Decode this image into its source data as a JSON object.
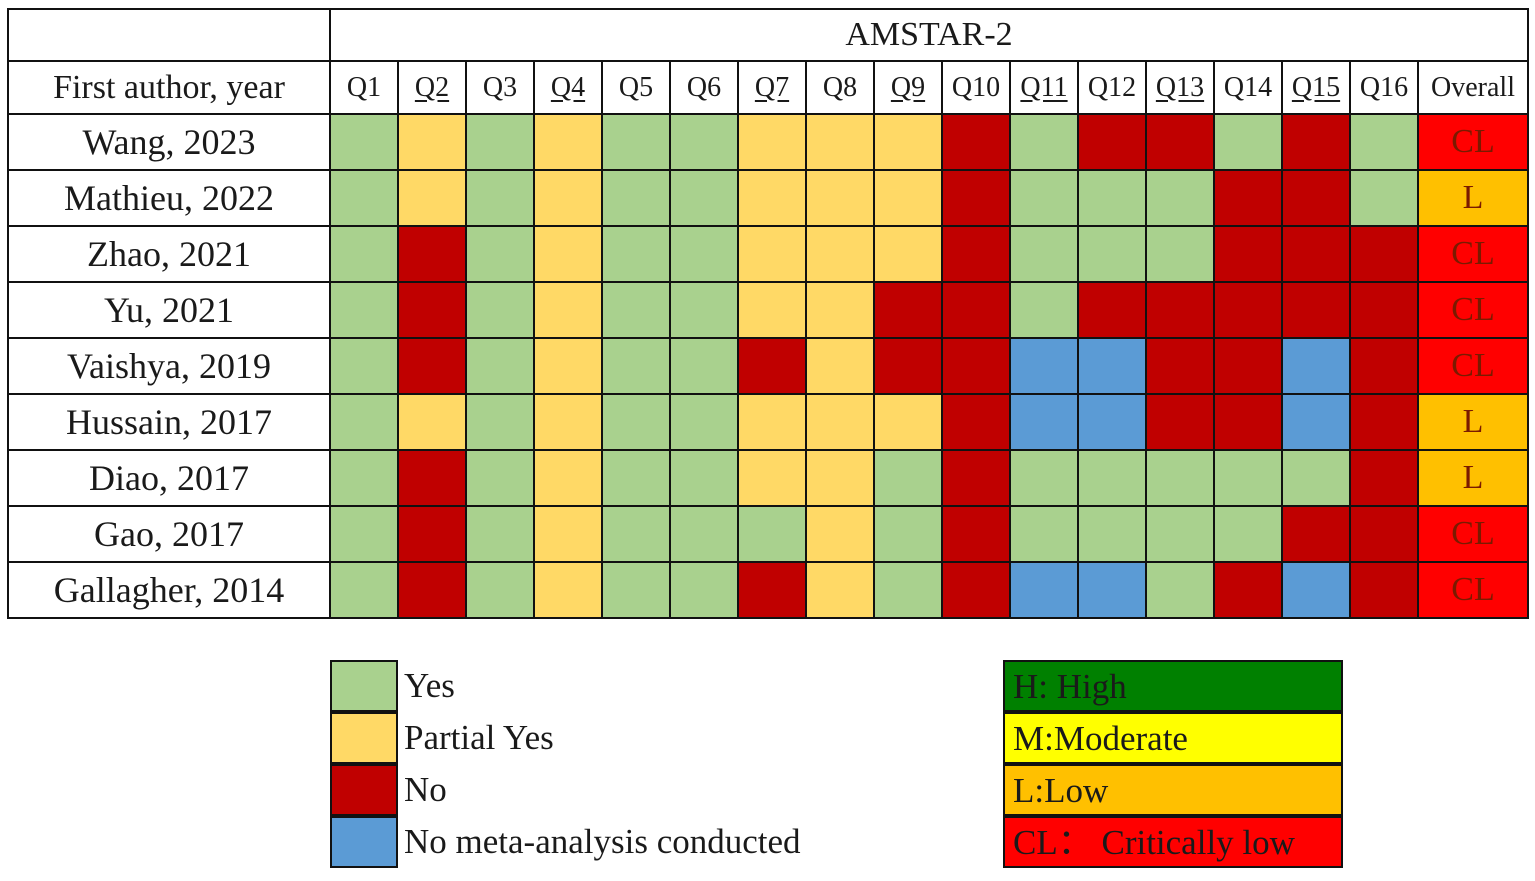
{
  "chart_data": {
    "type": "table",
    "title": "AMSTAR-2",
    "row_header": "First author, year",
    "columns": [
      "Q1",
      "Q2",
      "Q3",
      "Q4",
      "Q5",
      "Q6",
      "Q7",
      "Q8",
      "Q9",
      "Q10",
      "Q11",
      "Q12",
      "Q13",
      "Q14",
      "Q15",
      "Q16"
    ],
    "underlined_columns": [
      "Q2",
      "Q4",
      "Q7",
      "Q9",
      "Q11",
      "Q13",
      "Q15"
    ],
    "overall_header": "Overall",
    "rows": [
      {
        "author": "Wang, 2023",
        "ratings": [
          "Y",
          "PY",
          "Y",
          "PY",
          "Y",
          "Y",
          "PY",
          "PY",
          "PY",
          "N",
          "Y",
          "N",
          "N",
          "Y",
          "N",
          "Y"
        ],
        "overall": "CL"
      },
      {
        "author": "Mathieu, 2022",
        "ratings": [
          "Y",
          "PY",
          "Y",
          "PY",
          "Y",
          "Y",
          "PY",
          "PY",
          "PY",
          "N",
          "Y",
          "Y",
          "Y",
          "N",
          "N",
          "Y"
        ],
        "overall": "L"
      },
      {
        "author": "Zhao, 2021",
        "ratings": [
          "Y",
          "N",
          "Y",
          "PY",
          "Y",
          "Y",
          "PY",
          "PY",
          "PY",
          "N",
          "Y",
          "Y",
          "Y",
          "N",
          "N",
          "N"
        ],
        "overall": "CL"
      },
      {
        "author": "Yu, 2021",
        "ratings": [
          "Y",
          "N",
          "Y",
          "PY",
          "Y",
          "Y",
          "PY",
          "PY",
          "N",
          "N",
          "Y",
          "N",
          "N",
          "N",
          "N",
          "N"
        ],
        "overall": "CL"
      },
      {
        "author": "Vaishya, 2019",
        "ratings": [
          "Y",
          "N",
          "Y",
          "PY",
          "Y",
          "Y",
          "N",
          "PY",
          "N",
          "N",
          "NM",
          "NM",
          "N",
          "N",
          "NM",
          "N"
        ],
        "overall": "CL"
      },
      {
        "author": "Hussain, 2017",
        "ratings": [
          "Y",
          "PY",
          "Y",
          "PY",
          "Y",
          "Y",
          "PY",
          "PY",
          "PY",
          "N",
          "NM",
          "NM",
          "N",
          "N",
          "NM",
          "N"
        ],
        "overall": "L"
      },
      {
        "author": "Diao, 2017",
        "ratings": [
          "Y",
          "N",
          "Y",
          "PY",
          "Y",
          "Y",
          "PY",
          "PY",
          "Y",
          "N",
          "Y",
          "Y",
          "Y",
          "Y",
          "Y",
          "N"
        ],
        "overall": "L"
      },
      {
        "author": "Gao, 2017",
        "ratings": [
          "Y",
          "N",
          "Y",
          "PY",
          "Y",
          "Y",
          "Y",
          "PY",
          "Y",
          "N",
          "Y",
          "Y",
          "Y",
          "Y",
          "N",
          "N"
        ],
        "overall": "CL"
      },
      {
        "author": "Gallagher, 2014",
        "ratings": [
          "Y",
          "N",
          "Y",
          "PY",
          "Y",
          "Y",
          "N",
          "PY",
          "Y",
          "N",
          "NM",
          "NM",
          "Y",
          "N",
          "NM",
          "N"
        ],
        "overall": "CL"
      }
    ],
    "rating_colors": {
      "Y": "#a9d18e",
      "PY": "#ffd966",
      "N": "#c00000",
      "NM": "#5b9bd5"
    },
    "overall_colors": {
      "CL": "#ff0000",
      "L": "#ffc000",
      "M": "#ffff00",
      "H": "#008000"
    }
  },
  "legend": [
    {
      "key": "Y",
      "label": "Yes"
    },
    {
      "key": "PY",
      "label": "Partial Yes"
    },
    {
      "key": "N",
      "label": "No"
    },
    {
      "key": "NM",
      "label": "No meta-analysis conducted"
    }
  ],
  "rating_legend": [
    {
      "key": "H",
      "label": "H: High",
      "color": "#008000"
    },
    {
      "key": "M",
      "label": "M:Moderate",
      "color": "#ffff00"
    },
    {
      "key": "L",
      "label": "L:Low",
      "color": "#ffc000"
    },
    {
      "key": "CL",
      "label": "CL：  Critically low",
      "color": "#ff0000"
    }
  ]
}
